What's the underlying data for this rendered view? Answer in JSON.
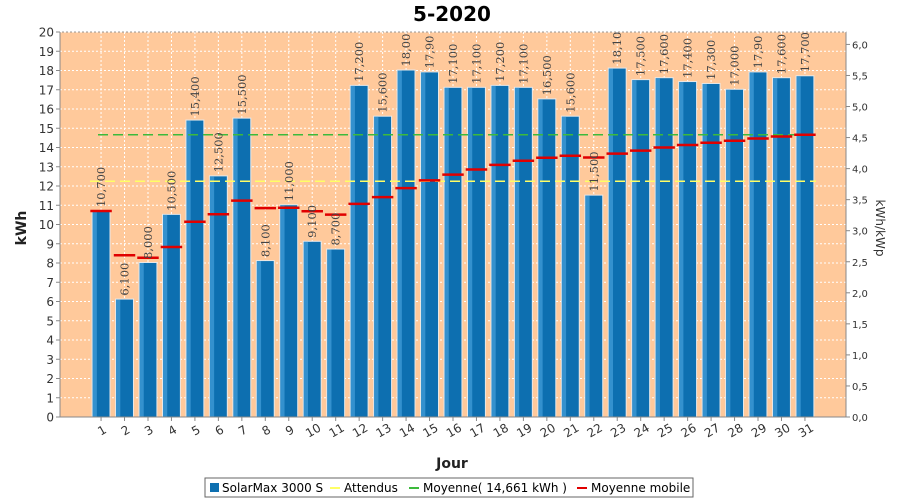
{
  "chart_data": {
    "type": "bar",
    "title": "5-2020",
    "xlabel": "Jour",
    "ylabel": "kWh",
    "ylabel_right": "kWh/kWp",
    "ylim": [
      0,
      20
    ],
    "ylim_right": [
      0,
      6.2
    ],
    "yticks": [
      "0",
      "1",
      "2",
      "3",
      "4",
      "5",
      "6",
      "7",
      "8",
      "9",
      "10",
      "11",
      "12",
      "13",
      "14",
      "15",
      "16",
      "17",
      "18",
      "19",
      "20"
    ],
    "yticks_right": [
      "0,0",
      "0,5",
      "1,0",
      "1,5",
      "2,0",
      "2,5",
      "3,0",
      "3,5",
      "4,0",
      "4,5",
      "5,0",
      "5,5",
      "6,0"
    ],
    "categories": [
      "1",
      "2",
      "3",
      "4",
      "5",
      "6",
      "7",
      "8",
      "9",
      "10",
      "11",
      "12",
      "13",
      "14",
      "15",
      "16",
      "17",
      "18",
      "19",
      "20",
      "21",
      "22",
      "23",
      "24",
      "25",
      "26",
      "27",
      "28",
      "29",
      "30",
      "31"
    ],
    "series": [
      {
        "name": "SolarMax 3000 S",
        "type": "bar",
        "values": [
          null,
          null,
          null,
          null,
          null,
          null,
          null,
          null,
          null,
          null,
          null,
          null,
          null,
          null,
          null,
          null,
          null,
          null,
          null,
          null,
          null,
          null,
          null,
          null,
          null,
          null,
          null,
          null,
          null,
          null,
          null
        ],
        "visible_values": [
          10.7,
          6.1,
          8.0,
          10.5,
          15.4,
          12.5,
          15.5,
          8.1,
          11.0,
          9.1,
          8.7,
          17.2,
          15.6,
          18.0,
          17.9,
          17.1,
          17.1,
          17.2,
          17.1,
          16.5,
          15.6,
          11.5,
          18.1,
          17.5,
          17.6,
          17.4,
          17.3,
          17.0,
          17.9,
          17.6,
          17.7
        ],
        "labels": [
          "10,700",
          "6,100",
          "8,000",
          "10,500",
          "15,400",
          "12,500",
          "15,500",
          "8,100",
          "11,000",
          "9,100",
          "8,700",
          "17,200",
          "15,600",
          "18,00",
          "17,90",
          "17,100",
          "17,100",
          "17,200",
          "17,100",
          "16,500",
          "15,600",
          "11,500",
          "18,10",
          "17,500",
          "17,600",
          "17,400",
          "17,300",
          "17,000",
          "17,90",
          "17,600",
          "17,700"
        ]
      },
      {
        "name": "Attendus",
        "type": "line",
        "value": 12.25
      },
      {
        "name": "Moyenne( 14,661 kWh )",
        "type": "line",
        "value": 14.661
      },
      {
        "name": "Moyenne mobile",
        "type": "step",
        "values": [
          10.7,
          8.4,
          8.27,
          8.83,
          10.14,
          10.53,
          11.24,
          10.85,
          10.87,
          10.69,
          10.51,
          11.07,
          11.42,
          11.89,
          12.29,
          12.59,
          12.86,
          13.1,
          13.31,
          13.47,
          13.57,
          13.48,
          13.68,
          13.84,
          14.0,
          14.13,
          14.25,
          14.35,
          14.47,
          14.57,
          14.66
        ]
      }
    ],
    "colors": {
      "bar": "#0d6fb0",
      "bar_edge": "#e8e8e8",
      "plot_bg": "#ffc99b",
      "attendus": "#ffff66",
      "moyenne": "#3cba3c",
      "mobile": "#e00000"
    },
    "grid": true,
    "legend_position": "bottom"
  }
}
